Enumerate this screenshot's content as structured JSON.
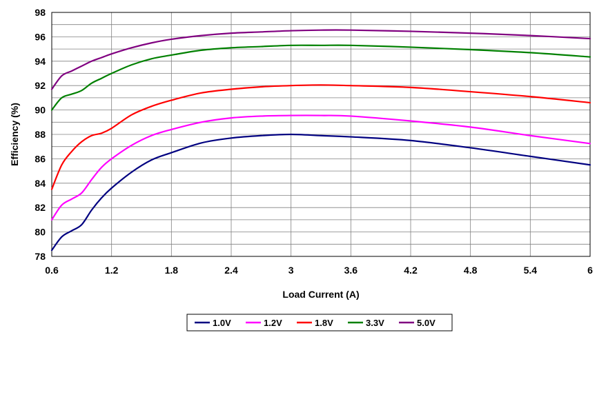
{
  "chart_data": {
    "type": "line",
    "title": "",
    "xlabel": "Load Current (A)",
    "ylabel": "Efficiency (%)",
    "xlim": [
      0.6,
      6
    ],
    "ylim": [
      78,
      98
    ],
    "xticks": [
      0.6,
      1.2,
      1.8,
      2.4,
      3,
      3.6,
      4.2,
      4.8,
      5.4,
      6
    ],
    "xtick_labels": [
      "0.6",
      "1.2",
      "1.8",
      "2.4",
      "3",
      "3.6",
      "4.2",
      "4.8",
      "5.4",
      "6"
    ],
    "yticks": [
      78,
      80,
      82,
      84,
      86,
      88,
      90,
      92,
      94,
      96,
      98
    ],
    "ytick_labels": [
      "78",
      "80",
      "82",
      "84",
      "86",
      "88",
      "90",
      "92",
      "94",
      "96",
      "98"
    ],
    "y_minor_step": 1,
    "grid": true,
    "legend_position": "bottom-center",
    "series": [
      {
        "name": "1.0V",
        "color": "#000080",
        "x": [
          0.6,
          0.7,
          0.8,
          0.9,
          1.0,
          1.1,
          1.2,
          1.4,
          1.6,
          1.8,
          2.1,
          2.4,
          2.7,
          3.0,
          3.3,
          3.6,
          4.2,
          4.8,
          5.4,
          6.0
        ],
        "y": [
          78.5,
          79.6,
          80.1,
          80.6,
          81.8,
          82.8,
          83.6,
          84.9,
          85.9,
          86.5,
          87.3,
          87.7,
          87.9,
          88.0,
          87.9,
          87.8,
          87.5,
          86.9,
          86.2,
          85.5
        ]
      },
      {
        "name": "1.2V",
        "color": "#FF00FF",
        "x": [
          0.6,
          0.7,
          0.8,
          0.9,
          1.0,
          1.1,
          1.2,
          1.4,
          1.6,
          1.8,
          2.1,
          2.4,
          2.7,
          3.0,
          3.3,
          3.6,
          4.2,
          4.8,
          5.4,
          6.0
        ],
        "y": [
          81.0,
          82.2,
          82.7,
          83.2,
          84.3,
          85.3,
          86.0,
          87.1,
          87.9,
          88.4,
          89.0,
          89.35,
          89.5,
          89.55,
          89.55,
          89.5,
          89.1,
          88.6,
          87.9,
          87.25
        ]
      },
      {
        "name": "1.8V",
        "color": "#FF0000",
        "x": [
          0.6,
          0.7,
          0.8,
          0.9,
          1.0,
          1.1,
          1.2,
          1.4,
          1.6,
          1.8,
          2.1,
          2.4,
          2.7,
          3.0,
          3.3,
          3.6,
          4.2,
          4.8,
          5.4,
          6.0
        ],
        "y": [
          83.5,
          85.5,
          86.6,
          87.4,
          87.9,
          88.1,
          88.5,
          89.6,
          90.3,
          90.8,
          91.4,
          91.7,
          91.9,
          92.0,
          92.05,
          92.0,
          91.85,
          91.5,
          91.1,
          90.6
        ]
      },
      {
        "name": "3.3V",
        "color": "#008000",
        "x": [
          0.6,
          0.7,
          0.8,
          0.9,
          1.0,
          1.1,
          1.2,
          1.4,
          1.6,
          1.8,
          2.1,
          2.4,
          2.7,
          3.0,
          3.3,
          3.6,
          4.2,
          4.8,
          5.4,
          6.0
        ],
        "y": [
          90.0,
          91.0,
          91.3,
          91.6,
          92.2,
          92.6,
          93.0,
          93.7,
          94.2,
          94.5,
          94.9,
          95.1,
          95.2,
          95.3,
          95.3,
          95.3,
          95.15,
          94.95,
          94.7,
          94.35
        ]
      },
      {
        "name": "5.0V",
        "color": "#800080",
        "x": [
          0.6,
          0.7,
          0.8,
          0.9,
          1.0,
          1.1,
          1.2,
          1.4,
          1.6,
          1.8,
          2.1,
          2.4,
          2.7,
          3.0,
          3.3,
          3.6,
          4.2,
          4.8,
          5.4,
          6.0
        ],
        "y": [
          91.7,
          92.8,
          93.2,
          93.6,
          94.0,
          94.3,
          94.6,
          95.1,
          95.5,
          95.8,
          96.1,
          96.3,
          96.4,
          96.5,
          96.55,
          96.55,
          96.45,
          96.3,
          96.1,
          95.85
        ]
      }
    ]
  }
}
